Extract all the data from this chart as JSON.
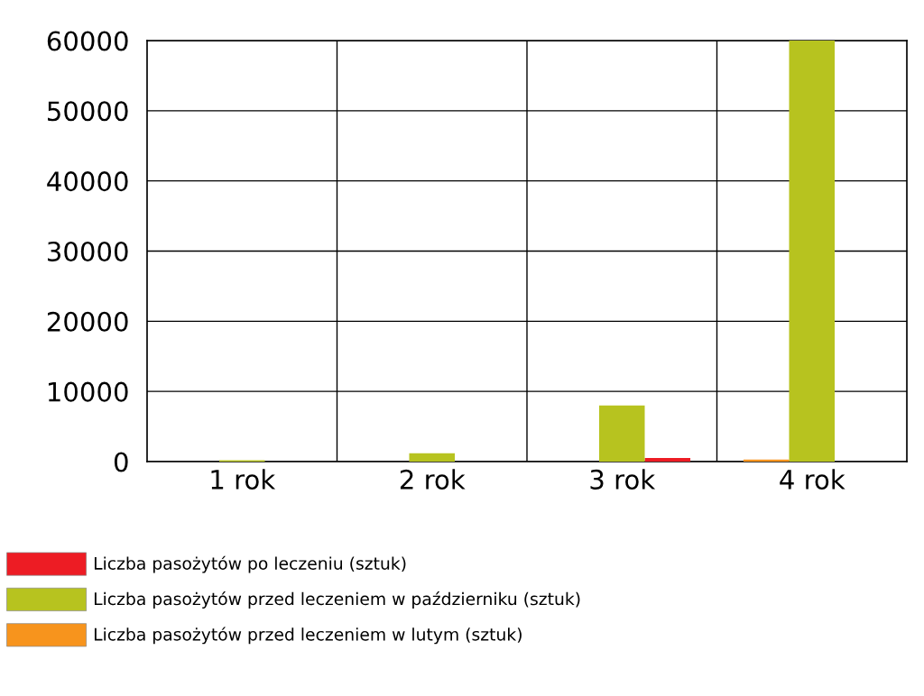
{
  "chart_data": {
    "type": "bar",
    "categories": [
      "1 rok",
      "2 rok",
      "3 rok",
      "4 rok"
    ],
    "series": [
      {
        "name": "Liczba pasożytów po leczeniu (sztuk)",
        "color": "#ed1c24",
        "values": [
          null,
          null,
          500,
          null
        ]
      },
      {
        "name": "Liczba pasożytów przed leczeniem w październiku (sztuk)",
        "color": "#b7c31f",
        "values": [
          200,
          1200,
          8000,
          60000
        ]
      },
      {
        "name": "Liczba pasożytów przed leczeniem w lutym (sztuk)",
        "color": "#f7941d",
        "values": [
          null,
          null,
          null,
          300
        ]
      }
    ],
    "ylim": [
      0,
      60000
    ],
    "yticks": [
      0,
      10000,
      20000,
      30000,
      40000,
      50000,
      60000
    ],
    "grid": true,
    "legend": "bottom"
  }
}
